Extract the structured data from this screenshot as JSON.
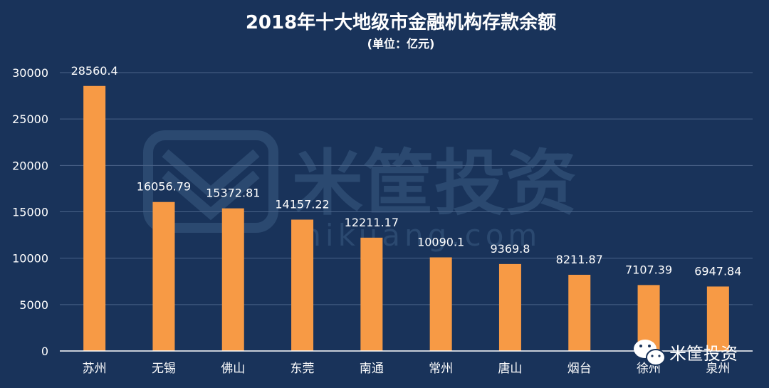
{
  "chart_data": {
    "type": "bar",
    "title": "2018年十大地级市金融机构存款余额",
    "subtitle": "(单位：亿元)",
    "categories": [
      "苏州",
      "无锡",
      "佛山",
      "东莞",
      "南通",
      "常州",
      "唐山",
      "烟台",
      "徐州",
      "泉州"
    ],
    "values": [
      28560.4,
      16056.79,
      15372.81,
      14157.22,
      12211.17,
      10090.1,
      9369.8,
      8211.87,
      7107.39,
      6947.84
    ],
    "value_labels": [
      "28560.4",
      "16056.79",
      "15372.81",
      "14157.22",
      "12211.17",
      "10090.1",
      "9369.8",
      "8211.87",
      "7107.39",
      "6947.84"
    ],
    "ylim": [
      0,
      30000
    ],
    "yticks": [
      "0",
      "5000",
      "10000",
      "15000",
      "20000",
      "25000",
      "30000"
    ],
    "ytick_values": [
      0,
      5000,
      10000,
      15000,
      20000,
      25000,
      30000
    ],
    "grid": true,
    "legend": "none",
    "colors": {
      "background": "#19335a",
      "bar": "#f79a45",
      "grid": "#4a6388",
      "text": "#ffffff"
    }
  },
  "watermark": {
    "text": "米筐投资",
    "url": "mikuang.com"
  },
  "brand": {
    "name": "米筐投资",
    "icon": "wechat-icon"
  }
}
